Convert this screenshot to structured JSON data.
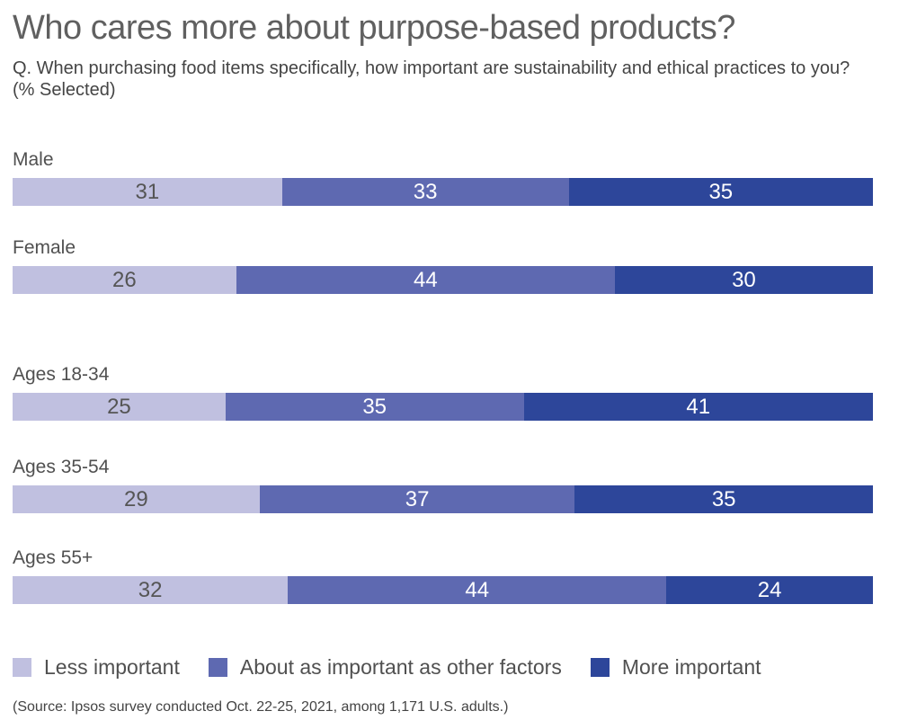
{
  "chart_data": {
    "type": "bar",
    "orientation": "horizontal-stacked",
    "title": "Who cares more about purpose-based products?",
    "subtitle": "Q. When purchasing food items specifically, how important are sustainability and ethical practices to you? (% Selected)",
    "categories": [
      "Male",
      "Female",
      "Ages 18-34",
      "Ages 35-54",
      "Ages 55+"
    ],
    "series": [
      {
        "name": "Less important",
        "color": "#c0c0e0",
        "text_color": "#555555",
        "values": [
          31,
          26,
          25,
          29,
          32
        ]
      },
      {
        "name": "About as important as other factors",
        "color": "#5e69b1",
        "text_color": "#ffffff",
        "values": [
          33,
          44,
          35,
          37,
          44
        ]
      },
      {
        "name": "More important",
        "color": "#2d469a",
        "text_color": "#ffffff",
        "values": [
          35,
          30,
          41,
          35,
          24
        ]
      }
    ],
    "legend_position": "bottom-left",
    "source": "(Source: Ipsos survey conducted Oct. 22-25, 2021, among 1,171 U.S. adults.)"
  }
}
